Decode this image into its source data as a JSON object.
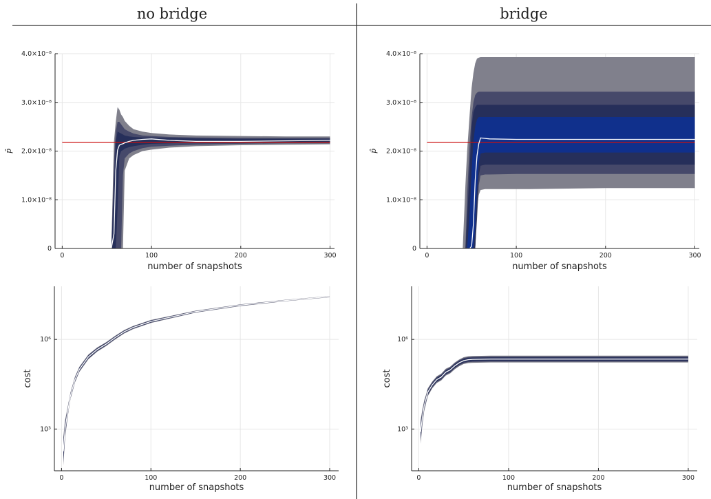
{
  "column_titles": [
    "no bridge",
    "bridge"
  ],
  "colors": {
    "band_outer": "#80808c",
    "band_mid": "#46496a",
    "band_inner": "#262f5a",
    "band_core": "#10308c",
    "mean_line": "#ffffff",
    "target_line": "#cc1111",
    "grid": "#e6e6e6"
  },
  "chart_data": [
    {
      "id": "top-left",
      "type": "area",
      "title": "no bridge",
      "xlabel": "number of snapshots",
      "ylabel": "p̂",
      "xlim": [
        -8,
        305
      ],
      "ylim": [
        0,
        4e-08
      ],
      "xticks": [
        0,
        100,
        200,
        300
      ],
      "xtick_labels": [
        "0",
        "100",
        "200",
        "300"
      ],
      "yticks": [
        0,
        1e-08,
        2e-08,
        3e-08,
        4e-08
      ],
      "ytick_labels": [
        "0",
        "1.0×10⁻⁸",
        "2.0×10⁻⁸",
        "3.0×10⁻⁸",
        "4.0×10⁻⁸"
      ],
      "target": 2.18e-08,
      "x": [
        0,
        55,
        58,
        60,
        62,
        64,
        66,
        68,
        70,
        75,
        80,
        90,
        100,
        120,
        150,
        200,
        250,
        300
      ],
      "mean": [
        0,
        0,
        3e-09,
        1.6e-08,
        2.02e-08,
        2.12e-08,
        2.14e-08,
        2.15e-08,
        2.17e-08,
        2.2e-08,
        2.22e-08,
        2.24e-08,
        2.25e-08,
        2.22e-08,
        2.2e-08,
        2.2e-08,
        2.21e-08,
        2.22e-08
      ],
      "bands": [
        {
          "lower": [
            0,
            0,
            0,
            0,
            0,
            0,
            0,
            0,
            1.6e-08,
            1.85e-08,
            1.92e-08,
            2e-08,
            2.03e-08,
            2.07e-08,
            2.1e-08,
            2.12e-08,
            2.13e-08,
            2.14e-08
          ],
          "upper": [
            0,
            0,
            2.2e-08,
            2.6e-08,
            2.9e-08,
            2.85e-08,
            2.75e-08,
            2.7e-08,
            2.62e-08,
            2.52e-08,
            2.45e-08,
            2.4e-08,
            2.37e-08,
            2.34e-08,
            2.32e-08,
            2.31e-08,
            2.3e-08,
            2.3e-08
          ]
        },
        {
          "lower": [
            0,
            0,
            0,
            0,
            0,
            0,
            0,
            1.5e-08,
            1.85e-08,
            1.95e-08,
            2e-08,
            2.06e-08,
            2.09e-08,
            2.11e-08,
            2.13e-08,
            2.15e-08,
            2.16e-08,
            2.16e-08
          ],
          "upper": [
            0,
            0,
            1.8e-08,
            2.4e-08,
            2.6e-08,
            2.6e-08,
            2.55e-08,
            2.5e-08,
            2.45e-08,
            2.4e-08,
            2.36e-08,
            2.32e-08,
            2.31e-08,
            2.29e-08,
            2.28e-08,
            2.27e-08,
            2.27e-08,
            2.27e-08
          ]
        },
        {
          "lower": [
            0,
            0,
            0,
            0,
            8e-09,
            1.9e-08,
            2e-08,
            2.02e-08,
            2.05e-08,
            2.08e-08,
            2.1e-08,
            2.13e-08,
            2.15e-08,
            2.16e-08,
            2.17e-08,
            2.18e-08,
            2.18e-08,
            2.19e-08
          ],
          "upper": [
            0,
            0,
            1.2e-08,
            2.2e-08,
            2.4e-08,
            2.38e-08,
            2.36e-08,
            2.34e-08,
            2.32e-08,
            2.3e-08,
            2.29e-08,
            2.28e-08,
            2.28e-08,
            2.27e-08,
            2.26e-08,
            2.25e-08,
            2.25e-08,
            2.25e-08
          ]
        }
      ]
    },
    {
      "id": "top-right",
      "type": "area",
      "title": "bridge",
      "xlabel": "number of snapshots",
      "ylabel": "p̂",
      "xlim": [
        -8,
        305
      ],
      "ylim": [
        0,
        4e-08
      ],
      "xticks": [
        0,
        100,
        200,
        300
      ],
      "xtick_labels": [
        "0",
        "100",
        "200",
        "300"
      ],
      "yticks": [
        0,
        1e-08,
        2e-08,
        3e-08,
        4e-08
      ],
      "ytick_labels": [
        "0",
        "1.0×10⁻⁸",
        "2.0×10⁻⁸",
        "3.0×10⁻⁸",
        "4.0×10⁻⁸"
      ],
      "target": 2.18e-08,
      "x": [
        0,
        40,
        43,
        45,
        48,
        50,
        52,
        54,
        56,
        58,
        60,
        65,
        70,
        100,
        115,
        200,
        300
      ],
      "mean": [
        0,
        0,
        0,
        0,
        0,
        5e-10,
        5e-09,
        1.4e-08,
        1.9e-08,
        2.15e-08,
        2.27e-08,
        2.26e-08,
        2.25e-08,
        2.24e-08,
        2.24e-08,
        2.24e-08,
        2.24e-08
      ],
      "bands": [
        {
          "lower": [
            0,
            0,
            0,
            0,
            0,
            0,
            0,
            0,
            8e-09,
            1.1e-08,
            1.2e-08,
            1.22e-08,
            1.22e-08,
            1.22e-08,
            1.22e-08,
            1.24e-08,
            1.24e-08
          ],
          "upper": [
            0,
            0,
            1.3e-08,
            2e-08,
            2.8e-08,
            3.3e-08,
            3.6e-08,
            3.8e-08,
            3.9e-08,
            3.92e-08,
            3.93e-08,
            3.93e-08,
            3.93e-08,
            3.93e-08,
            3.93e-08,
            3.93e-08,
            3.93e-08
          ]
        },
        {
          "lower": [
            0,
            0,
            0,
            0,
            0,
            0,
            0,
            0,
            6e-09,
            1.3e-08,
            1.5e-08,
            1.52e-08,
            1.52e-08,
            1.53e-08,
            1.53e-08,
            1.53e-08,
            1.53e-08
          ],
          "upper": [
            0,
            0,
            0,
            1.1e-08,
            2.2e-08,
            2.7e-08,
            3e-08,
            3.15e-08,
            3.2e-08,
            3.22e-08,
            3.22e-08,
            3.22e-08,
            3.22e-08,
            3.22e-08,
            3.22e-08,
            3.22e-08,
            3.22e-08
          ]
        },
        {
          "lower": [
            0,
            0,
            0,
            0,
            0,
            0,
            0,
            0,
            8e-09,
            1.5e-08,
            1.7e-08,
            1.72e-08,
            1.72e-08,
            1.72e-08,
            1.72e-08,
            1.72e-08,
            1.72e-08
          ],
          "upper": [
            0,
            0,
            0,
            6e-09,
            1.7e-08,
            2.5e-08,
            2.8e-08,
            2.9e-08,
            2.95e-08,
            2.95e-08,
            2.95e-08,
            2.95e-08,
            2.95e-08,
            2.95e-08,
            2.95e-08,
            2.95e-08,
            2.95e-08
          ]
        },
        {
          "lower": [
            0,
            0,
            0,
            0,
            0,
            0,
            0,
            4e-09,
            1.2e-08,
            1.75e-08,
            1.95e-08,
            1.97e-08,
            1.97e-08,
            1.97e-08,
            1.97e-08,
            1.97e-08,
            1.97e-08
          ],
          "upper": [
            0,
            0,
            0,
            0,
            8e-09,
            1.6e-08,
            2.2e-08,
            2.5e-08,
            2.65e-08,
            2.7e-08,
            2.7e-08,
            2.7e-08,
            2.7e-08,
            2.7e-08,
            2.7e-08,
            2.7e-08,
            2.7e-08
          ]
        }
      ]
    },
    {
      "id": "bottom-left",
      "type": "line",
      "xlabel": "number of snapshots",
      "ylabel": "cost",
      "log_y": true,
      "xlim": [
        -8,
        310
      ],
      "ylim": [
        40,
        60000000
      ],
      "xticks": [
        0,
        100,
        200,
        300
      ],
      "xtick_labels": [
        "0",
        "100",
        "200",
        "300"
      ],
      "yticks": [
        1000,
        1000000
      ],
      "ytick_labels": [
        "10³",
        "10⁶"
      ],
      "x": [
        2,
        4,
        6,
        8,
        10,
        15,
        20,
        30,
        40,
        50,
        60,
        70,
        80,
        100,
        150,
        200,
        250,
        300
      ],
      "mean": [
        180,
        1000,
        2500,
        6000,
        13000,
        45000,
        100000,
        260000,
        460000,
        700000,
        1150000,
        1800000,
        2500000,
        4000000,
        8500000,
        14000000,
        20000000,
        27000000
      ],
      "band_factor": [
        3.0,
        2.0,
        1.6,
        1.4,
        1.3,
        1.25,
        1.22,
        1.2,
        1.18,
        1.16,
        1.15,
        1.14,
        1.13,
        1.12,
        1.08,
        1.07,
        1.06,
        1.05
      ]
    },
    {
      "id": "bottom-right",
      "type": "line",
      "xlabel": "number of snapshots",
      "ylabel": "cost",
      "log_y": true,
      "xlim": [
        -8,
        310
      ],
      "ylim": [
        40,
        60000000
      ],
      "xticks": [
        0,
        100,
        200,
        300
      ],
      "xtick_labels": [
        "0",
        "100",
        "200",
        "300"
      ],
      "yticks": [
        1000,
        1000000
      ],
      "ytick_labels": [
        "10³",
        "10⁶"
      ],
      "x": [
        2,
        4,
        6,
        8,
        10,
        15,
        20,
        25,
        30,
        35,
        40,
        45,
        50,
        55,
        60,
        80,
        100,
        150,
        200,
        250,
        300
      ],
      "mean": [
        800,
        2500,
        6000,
        10000,
        17000,
        30000,
        45000,
        55000,
        80000,
        95000,
        130000,
        165000,
        195000,
        210000,
        215000,
        220000,
        220000,
        220000,
        220000,
        220000,
        220000
      ],
      "band_factor": [
        2.5,
        1.8,
        1.5,
        1.4,
        1.35,
        1.3,
        1.3,
        1.3,
        1.3,
        1.3,
        1.3,
        1.3,
        1.3,
        1.3,
        1.3,
        1.3,
        1.3,
        1.3,
        1.3,
        1.3,
        1.3
      ]
    }
  ]
}
